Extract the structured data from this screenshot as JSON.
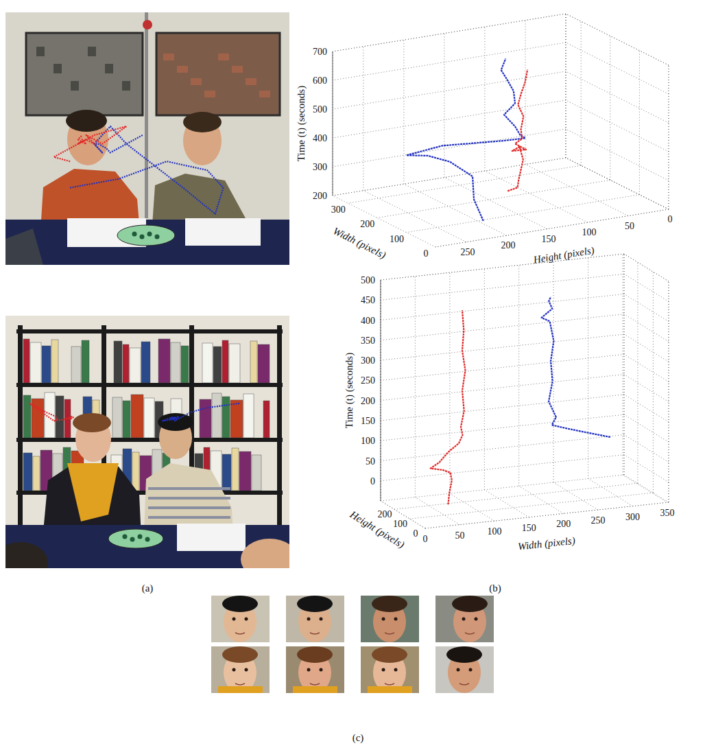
{
  "panel_labels": [
    "(a)",
    "(b)",
    "(c)"
  ],
  "chart_data": [
    {
      "type": "line3d",
      "xlabel": "Width (pixels)",
      "ylabel": "Height (pixels)",
      "zlabel": "Time (t) (seconds)",
      "xlim": [
        0,
        352
      ],
      "xticks": [
        0,
        100,
        200,
        300
      ],
      "ylim": [
        0,
        288
      ],
      "yticks": [
        0,
        50,
        100,
        150,
        200,
        250
      ],
      "zlim": [
        200,
        700
      ],
      "zticks": [
        200,
        300,
        400,
        500,
        600,
        700
      ],
      "grid": true,
      "series": [
        {
          "color": "#2030c0",
          "x": [
            80,
            140,
            200,
            250,
            270,
            260,
            220,
            150,
            130,
            120,
            110,
            120,
            110,
            115,
            125,
            130,
            170
          ],
          "y": [
            200,
            190,
            170,
            180,
            200,
            230,
            200,
            150,
            130,
            140,
            150,
            160,
            150,
            150,
            155,
            160,
            140
          ],
          "z": [
            210,
            250,
            290,
            320,
            340,
            360,
            400,
            430,
            440,
            460,
            500,
            540,
            580,
            620,
            660,
            690,
            700
          ]
        },
        {
          "color": "#e02828",
          "x": [
            80,
            60,
            70,
            90,
            110,
            150,
            120,
            100,
            110,
            100,
            90,
            95,
            100,
            95,
            90,
            95
          ],
          "y": [
            170,
            165,
            160,
            150,
            140,
            130,
            150,
            140,
            150,
            145,
            150,
            145,
            150,
            148,
            145,
            140
          ],
          "z": [
            300,
            320,
            340,
            360,
            380,
            400,
            410,
            420,
            440,
            460,
            500,
            540,
            580,
            620,
            660,
            700
          ]
        }
      ]
    },
    {
      "type": "line3d",
      "xlabel": "Width (pixels)",
      "ylabel": "Height (pixels)",
      "zlabel": "Time (t) (seconds)",
      "xlim": [
        0,
        352
      ],
      "xticks": [
        0,
        50,
        100,
        150,
        200,
        250,
        300,
        350
      ],
      "ylim": [
        0,
        288
      ],
      "yticks": [
        0,
        100,
        200
      ],
      "zlim": [
        -50,
        500
      ],
      "zticks": [
        0,
        50,
        100,
        150,
        200,
        250,
        300,
        350,
        400,
        450,
        500
      ],
      "grid": true,
      "series": [
        {
          "color": "#2030c0",
          "x": [
            290,
            250,
            230,
            210,
            215,
            205,
            210,
            208,
            212,
            206,
            195,
            210,
            205,
            208
          ],
          "y": [
            100,
            105,
            110,
            120,
            115,
            118,
            116,
            118,
            117,
            116,
            120,
            118,
            117,
            118
          ],
          "z": [
            100,
            120,
            130,
            140,
            160,
            200,
            250,
            300,
            350,
            400,
            410,
            430,
            450,
            460
          ]
        },
        {
          "color": "#e02828",
          "x": [
            60,
            62,
            65,
            62,
            50,
            30,
            45,
            60,
            75,
            80,
            78,
            82,
            80,
            84,
            80,
            82,
            80
          ],
          "y": [
            120,
            120,
            118,
            115,
            110,
            100,
            110,
            120,
            118,
            116,
            118,
            115,
            118,
            116,
            118,
            117,
            118
          ],
          "z": [
            -30,
            0,
            30,
            50,
            60,
            70,
            80,
            100,
            120,
            140,
            160,
            200,
            250,
            300,
            350,
            400,
            450
          ]
        }
      ]
    }
  ]
}
